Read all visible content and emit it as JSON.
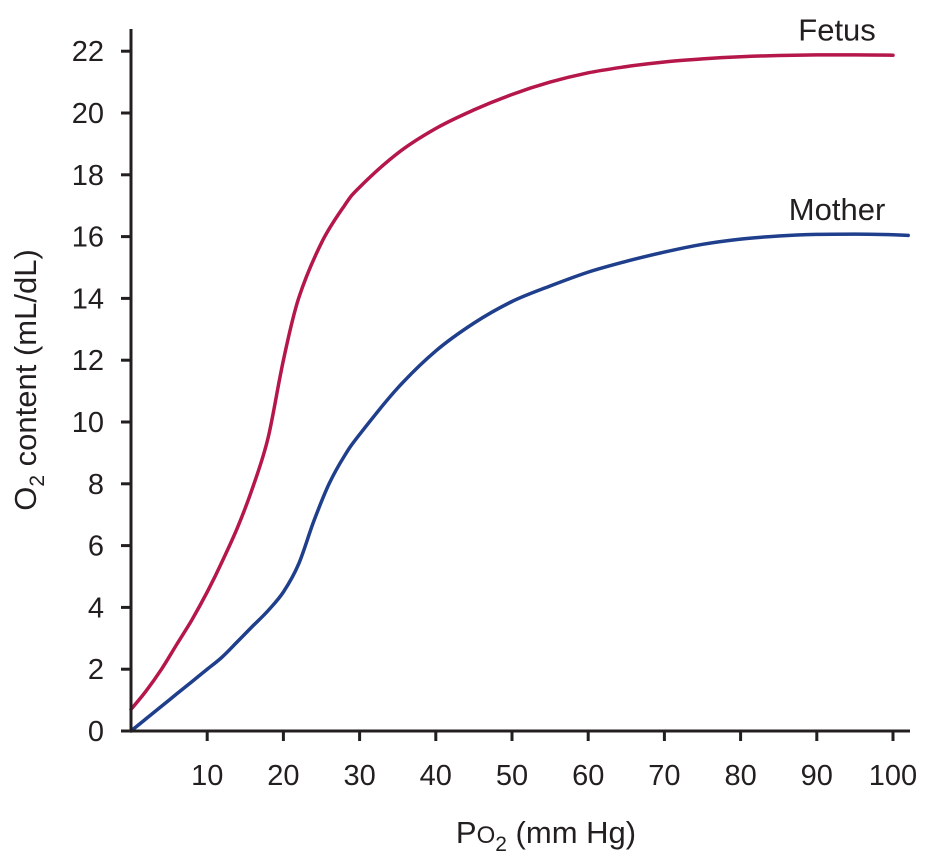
{
  "chart_data": {
    "type": "line",
    "title": "",
    "xlabel_main": "P",
    "xlabel_sub_o": "O",
    "xlabel_sub_2": "2",
    "xlabel_unit": " (mm Hg)",
    "ylabel_main": "O",
    "ylabel_sub_2": "2",
    "ylabel_unit": " content (mL/dL)",
    "xlim": [
      0,
      103
    ],
    "ylim": [
      0,
      22.5
    ],
    "x_ticks": [
      10,
      20,
      30,
      40,
      50,
      60,
      70,
      80,
      90,
      100
    ],
    "y_ticks": [
      0,
      2,
      4,
      6,
      8,
      10,
      12,
      14,
      16,
      18,
      20,
      22
    ],
    "grid": false,
    "series": [
      {
        "name": "Fetus",
        "color": "#b5174a",
        "points": [
          [
            0,
            0.7
          ],
          [
            2,
            1.3
          ],
          [
            4,
            2.0
          ],
          [
            6,
            2.8
          ],
          [
            8,
            3.6
          ],
          [
            10,
            4.5
          ],
          [
            12,
            5.5
          ],
          [
            14,
            6.6
          ],
          [
            16,
            7.9
          ],
          [
            18,
            9.5
          ],
          [
            20,
            12.0
          ],
          [
            22,
            14.0
          ],
          [
            25,
            15.8
          ],
          [
            28,
            17.0
          ],
          [
            30,
            17.6
          ],
          [
            35,
            18.7
          ],
          [
            40,
            19.5
          ],
          [
            45,
            20.1
          ],
          [
            50,
            20.6
          ],
          [
            55,
            21.0
          ],
          [
            60,
            21.3
          ],
          [
            65,
            21.5
          ],
          [
            70,
            21.65
          ],
          [
            75,
            21.75
          ],
          [
            80,
            21.82
          ],
          [
            85,
            21.86
          ],
          [
            90,
            21.88
          ],
          [
            95,
            21.88
          ],
          [
            100,
            21.87
          ]
        ]
      },
      {
        "name": "Mother",
        "color": "#1f3f8c",
        "points": [
          [
            0,
            0.0
          ],
          [
            2,
            0.4
          ],
          [
            4,
            0.8
          ],
          [
            6,
            1.2
          ],
          [
            8,
            1.6
          ],
          [
            10,
            2.0
          ],
          [
            12,
            2.4
          ],
          [
            14,
            2.9
          ],
          [
            16,
            3.4
          ],
          [
            18,
            3.9
          ],
          [
            20,
            4.5
          ],
          [
            22,
            5.4
          ],
          [
            24,
            6.8
          ],
          [
            26,
            8.0
          ],
          [
            28,
            8.9
          ],
          [
            30,
            9.6
          ],
          [
            35,
            11.1
          ],
          [
            40,
            12.3
          ],
          [
            45,
            13.2
          ],
          [
            50,
            13.9
          ],
          [
            55,
            14.4
          ],
          [
            60,
            14.85
          ],
          [
            65,
            15.2
          ],
          [
            70,
            15.5
          ],
          [
            75,
            15.75
          ],
          [
            80,
            15.92
          ],
          [
            85,
            16.02
          ],
          [
            90,
            16.07
          ],
          [
            95,
            16.08
          ],
          [
            100,
            16.06
          ],
          [
            102,
            16.04
          ]
        ]
      }
    ],
    "annotations": [
      {
        "text": "Fetus",
        "series": "Fetus",
        "near_x": 92,
        "near_y": 22.6
      },
      {
        "text": "Mother",
        "series": "Mother",
        "near_x": 92,
        "near_y": 16.8
      }
    ]
  }
}
